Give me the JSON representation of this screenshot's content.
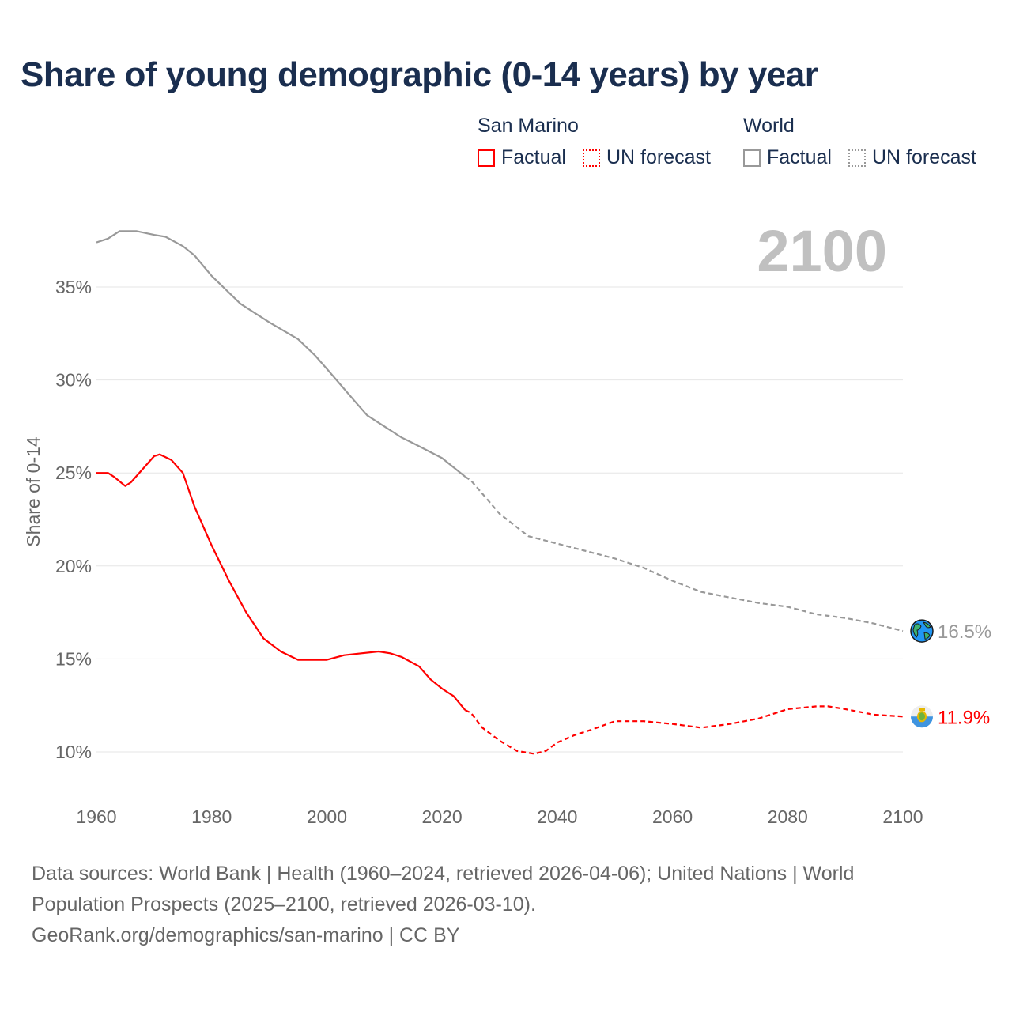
{
  "title": "Share of young demographic (0-14 years) by year",
  "legend": {
    "groups": [
      {
        "name": "San Marino",
        "factual": "Factual",
        "forecast": "UN forecast",
        "color": "#ff0000"
      },
      {
        "name": "World",
        "factual": "Factual",
        "forecast": "UN forecast",
        "color": "#999999"
      }
    ]
  },
  "footer": {
    "line1": "Data sources: World Bank | Health (1960–2024, retrieved 2026-04-06); United Nations | World",
    "line2": "Population Prospects (2025–2100, retrieved 2026-03-10).",
    "line3": "GeoRank.org/demographics/san-marino | CC BY"
  },
  "chart_data": {
    "type": "line",
    "title": "Share of young demographic (0-14 years) by year",
    "year_label": "2100",
    "xlabel": "",
    "ylabel": "Share of 0-14",
    "xlim": [
      1960,
      2100
    ],
    "ylim": [
      7.5,
      38.5
    ],
    "xticks": [
      1960,
      1980,
      2000,
      2020,
      2040,
      2060,
      2080,
      2100
    ],
    "xtick_labels": [
      "1960",
      "1980",
      "2000",
      "2020",
      "2040",
      "2060",
      "2080",
      "2100"
    ],
    "yticks": [
      10,
      15,
      20,
      25,
      30,
      35
    ],
    "ytick_labels": [
      "10%",
      "15%",
      "20%",
      "25%",
      "30%",
      "35%"
    ],
    "grid": true,
    "series": [
      {
        "name": "World",
        "icon": "globe-icon",
        "color": "#999999",
        "end_label": "16.5%",
        "factual": [
          [
            1960,
            37.4
          ],
          [
            1962,
            37.6
          ],
          [
            1964,
            38.0
          ],
          [
            1967,
            38.0
          ],
          [
            1970,
            37.8
          ],
          [
            1972,
            37.7
          ],
          [
            1975,
            37.2
          ],
          [
            1977,
            36.7
          ],
          [
            1980,
            35.6
          ],
          [
            1985,
            34.1
          ],
          [
            1990,
            33.1
          ],
          [
            1995,
            32.2
          ],
          [
            1998,
            31.3
          ],
          [
            2000,
            30.6
          ],
          [
            2005,
            28.8
          ],
          [
            2007,
            28.1
          ],
          [
            2010,
            27.5
          ],
          [
            2013,
            26.9
          ],
          [
            2015,
            26.6
          ],
          [
            2020,
            25.8
          ],
          [
            2024,
            24.8
          ]
        ],
        "forecast": [
          [
            2024,
            24.8
          ],
          [
            2025,
            24.6
          ],
          [
            2030,
            22.8
          ],
          [
            2035,
            21.6
          ],
          [
            2040,
            21.2
          ],
          [
            2045,
            20.8
          ],
          [
            2050,
            20.4
          ],
          [
            2055,
            19.9
          ],
          [
            2060,
            19.2
          ],
          [
            2065,
            18.6
          ],
          [
            2070,
            18.3
          ],
          [
            2075,
            18.0
          ],
          [
            2080,
            17.8
          ],
          [
            2085,
            17.4
          ],
          [
            2090,
            17.2
          ],
          [
            2095,
            16.9
          ],
          [
            2100,
            16.5
          ]
        ]
      },
      {
        "name": "San Marino",
        "icon": "san-marino-flag-icon",
        "color": "#ff0000",
        "end_label": "11.9%",
        "factual": [
          [
            1960,
            25.0
          ],
          [
            1962,
            25.0
          ],
          [
            1963,
            24.8
          ],
          [
            1965,
            24.3
          ],
          [
            1966,
            24.5
          ],
          [
            1968,
            25.2
          ],
          [
            1970,
            25.9
          ],
          [
            1971,
            26.0
          ],
          [
            1973,
            25.7
          ],
          [
            1975,
            25.0
          ],
          [
            1977,
            23.2
          ],
          [
            1980,
            21.1
          ],
          [
            1983,
            19.2
          ],
          [
            1986,
            17.5
          ],
          [
            1989,
            16.1
          ],
          [
            1992,
            15.4
          ],
          [
            1995,
            14.95
          ],
          [
            2000,
            14.95
          ],
          [
            2003,
            15.2
          ],
          [
            2006,
            15.3
          ],
          [
            2009,
            15.4
          ],
          [
            2011,
            15.3
          ],
          [
            2013,
            15.1
          ],
          [
            2016,
            14.6
          ],
          [
            2018,
            13.9
          ],
          [
            2020,
            13.4
          ],
          [
            2022,
            13.0
          ],
          [
            2024,
            12.25
          ]
        ],
        "forecast": [
          [
            2024,
            12.25
          ],
          [
            2025,
            12.1
          ],
          [
            2027,
            11.3
          ],
          [
            2030,
            10.6
          ],
          [
            2033,
            10.05
          ],
          [
            2036,
            9.9
          ],
          [
            2038,
            10.05
          ],
          [
            2040,
            10.5
          ],
          [
            2043,
            10.9
          ],
          [
            2046,
            11.2
          ],
          [
            2050,
            11.65
          ],
          [
            2055,
            11.65
          ],
          [
            2060,
            11.5
          ],
          [
            2065,
            11.3
          ],
          [
            2070,
            11.5
          ],
          [
            2075,
            11.8
          ],
          [
            2080,
            12.3
          ],
          [
            2085,
            12.45
          ],
          [
            2087,
            12.45
          ],
          [
            2090,
            12.3
          ],
          [
            2095,
            12.0
          ],
          [
            2100,
            11.9
          ]
        ]
      }
    ]
  }
}
